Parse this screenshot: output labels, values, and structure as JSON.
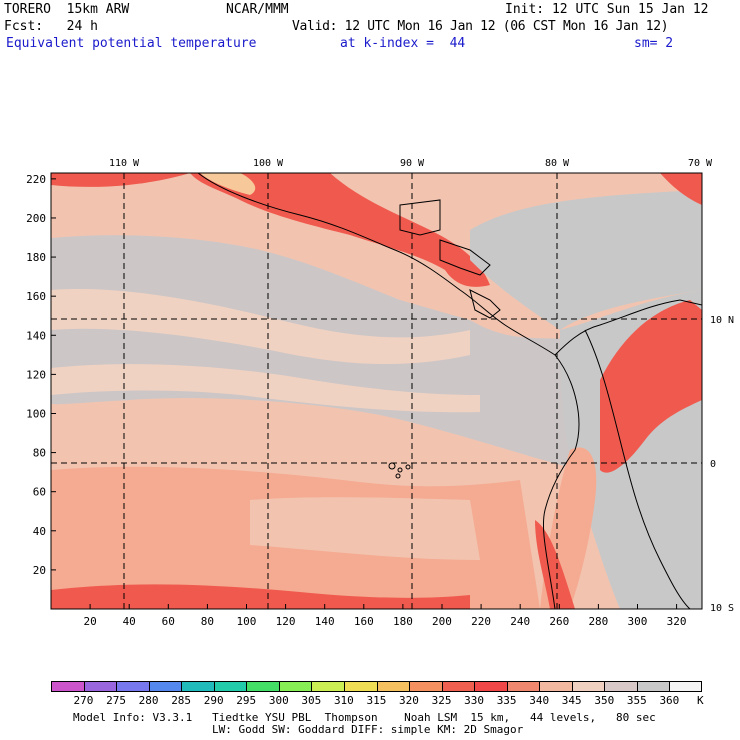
{
  "header": {
    "model": "TORERO  15km ARW",
    "center": "NCAR/MMM",
    "init": "Init: 12 UTC Sun 15 Jan 12",
    "fcst": "Fcst:   24 h",
    "valid": "Valid: 12 UTC Mon 16 Jan 12 (06 CST Mon 16 Jan 12)",
    "field": "Equivalent potential temperature",
    "level": "at k-index =  44",
    "smooth": "sm= 2"
  },
  "map": {
    "lon_labels": [
      "110 W",
      "100 W",
      "90 W",
      "80 W",
      "70 W"
    ],
    "lat_labels": [
      "10 N",
      "0",
      "10 S"
    ],
    "y_ticks": [
      "220",
      "200",
      "180",
      "160",
      "140",
      "120",
      "100",
      "80",
      "60",
      "40",
      "20"
    ],
    "x_ticks": [
      "20",
      "40",
      "60",
      "80",
      "100",
      "120",
      "140",
      "160",
      "180",
      "200",
      "220",
      "240",
      "260",
      "280",
      "300",
      "320"
    ]
  },
  "colorbar": {
    "labels": [
      "270",
      "275",
      "280",
      "285",
      "290",
      "295",
      "300",
      "305",
      "310",
      "315",
      "320",
      "325",
      "330",
      "335",
      "340",
      "345",
      "350",
      "355",
      "360"
    ],
    "unit": "K",
    "colors": [
      "#cc55cc",
      "#9966dd",
      "#7777ee",
      "#5588ee",
      "#22bbbb",
      "#22ccaa",
      "#44dd66",
      "#88ee55",
      "#ccee55",
      "#eedd55",
      "#f5c060",
      "#f59060",
      "#f06050",
      "#f04848",
      "#f08870",
      "#f2b8a0",
      "#f0d0c0",
      "#d8c8c8",
      "#c8c8c8",
      "#f4f4f4"
    ]
  },
  "footer": {
    "line1": "Model Info: V3.3.1   Tiedtke YSU PBL  Thompson    Noah LSM  15 km,   44 levels,   80 sec",
    "line2": "LW: Godd SW: Goddard DIFF: simple KM: 2D Smagor"
  }
}
